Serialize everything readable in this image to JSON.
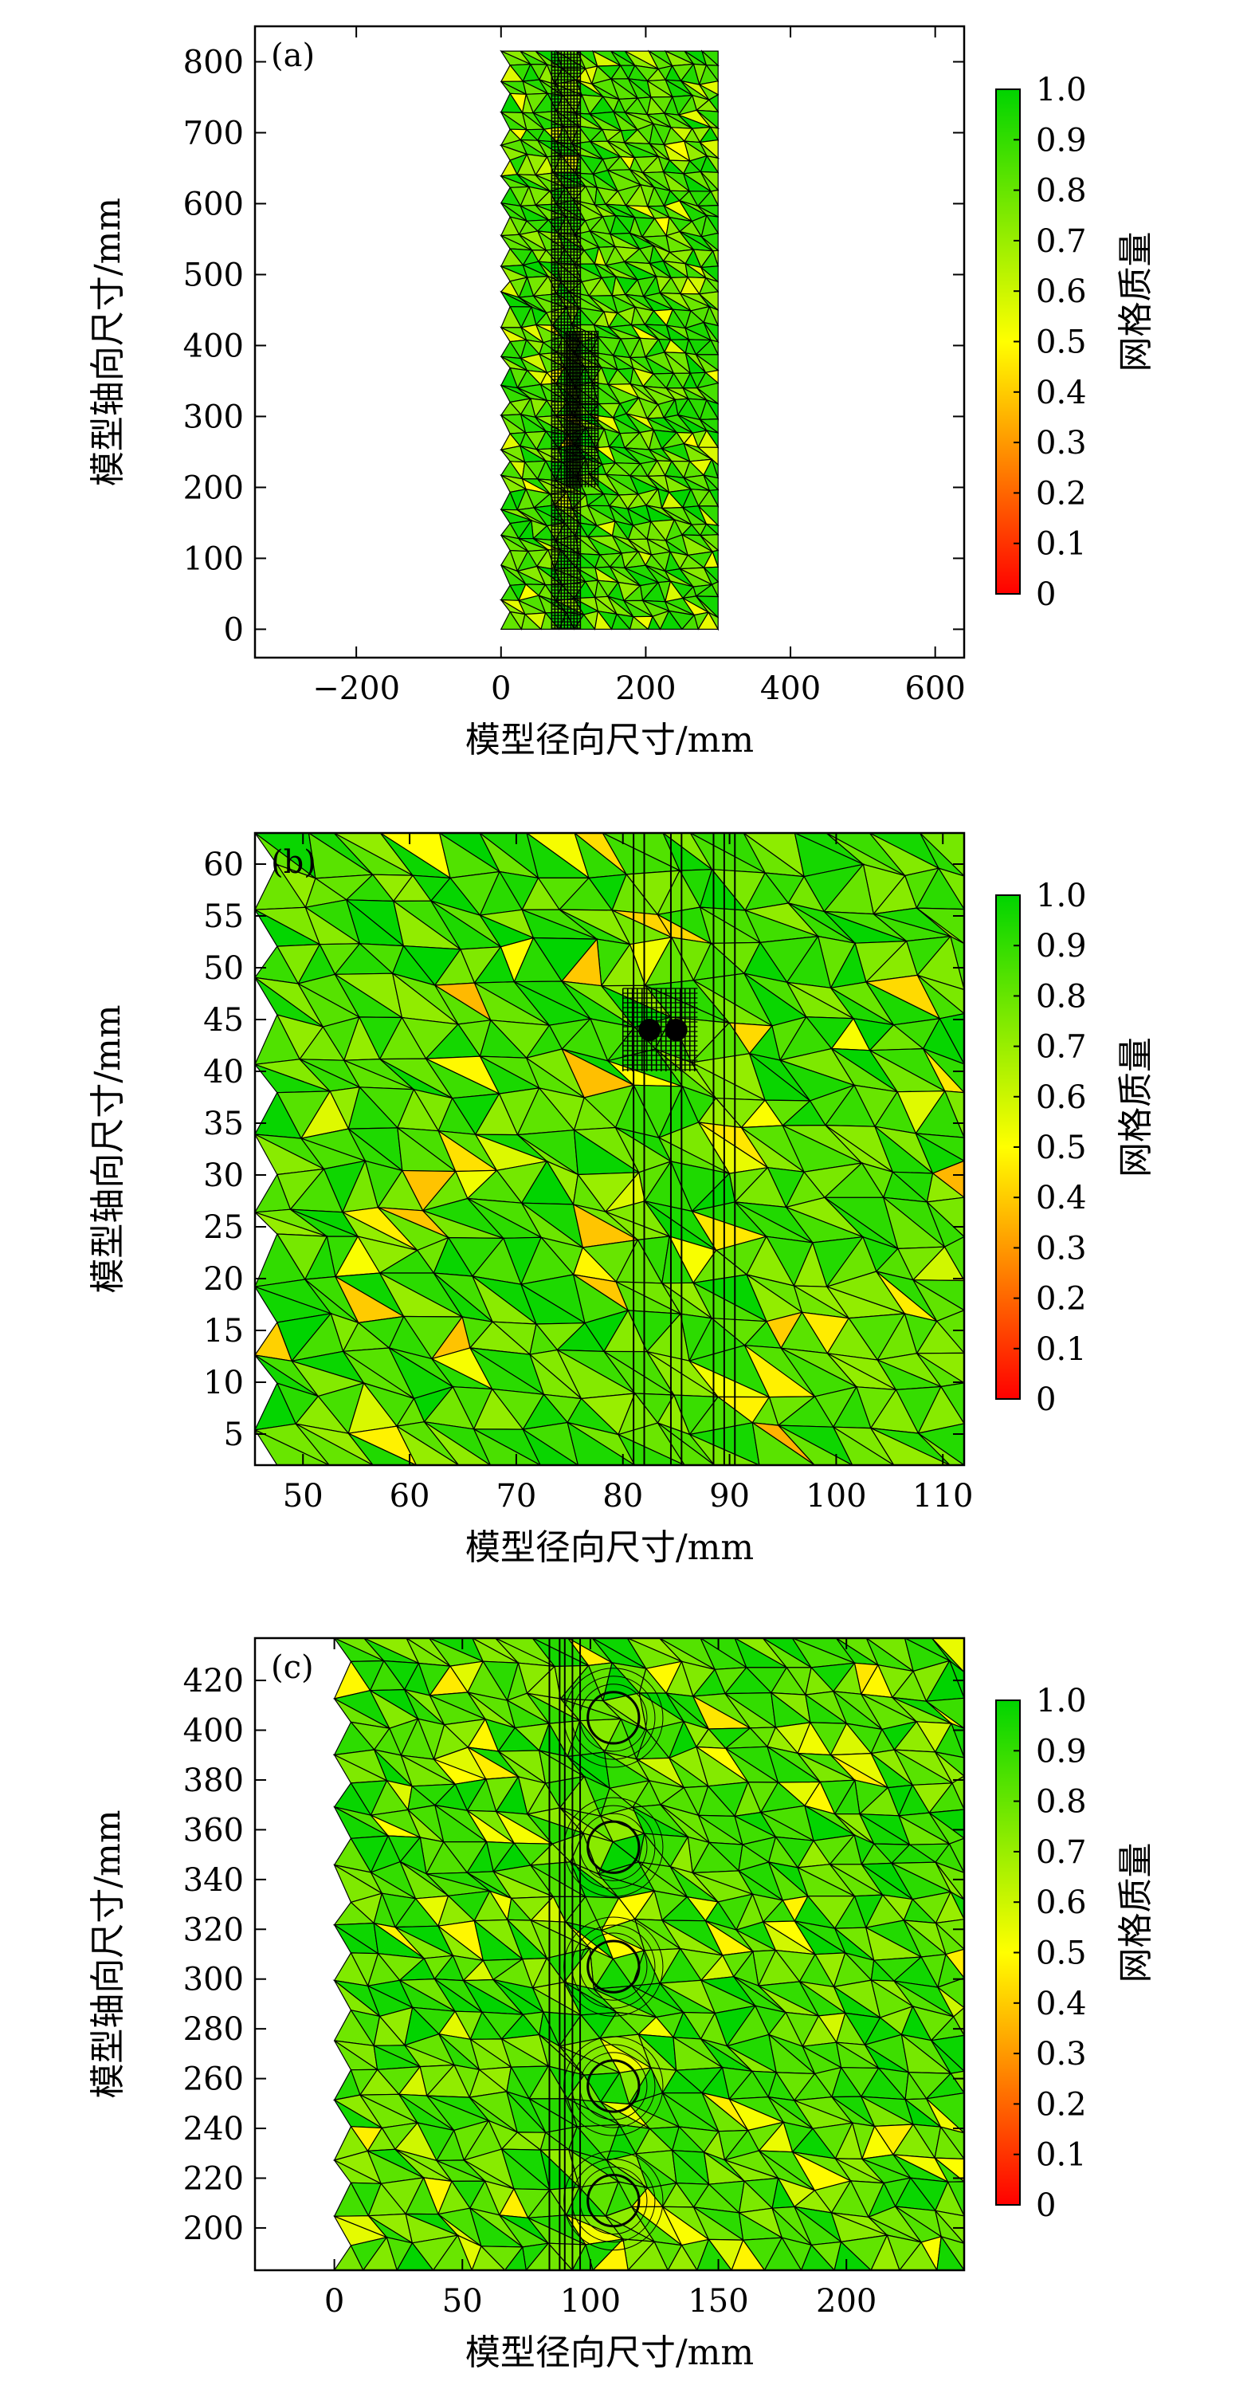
{
  "colorbar": {
    "label": "网格质量",
    "ticks": [
      0,
      0.1,
      0.2,
      0.3,
      0.4,
      0.5,
      0.6,
      0.7,
      0.8,
      0.9,
      1.0
    ],
    "tick_labels": [
      "0",
      "0.1",
      "0.2",
      "0.3",
      "0.4",
      "0.5",
      "0.6",
      "0.7",
      "0.8",
      "0.9",
      "1.0"
    ],
    "colors": [
      "#ff0000",
      "#ffff00",
      "#00d400"
    ]
  },
  "colors": {
    "mesh_line": "#000000",
    "mesh_fill_main": "#5ed41a",
    "mesh_fill_alt": "#8ee014",
    "mesh_fill_low": "#e6e63c",
    "axes": "#000000"
  },
  "chart_data": [
    {
      "type": "heatmap",
      "panel_label": "(a)",
      "xlabel": "模型径向尺寸/mm",
      "ylabel": "模型轴向尺寸/mm",
      "xlim": [
        -340,
        640
      ],
      "ylim": [
        -40,
        850
      ],
      "xticks": [
        -200,
        0,
        200,
        400,
        600
      ],
      "xtick_labels": [
        "−200",
        "0",
        "200",
        "400",
        "600"
      ],
      "yticks": [
        0,
        100,
        200,
        300,
        400,
        500,
        600,
        700,
        800
      ],
      "ytick_labels": [
        "0",
        "100",
        "200",
        "300",
        "400",
        "500",
        "600",
        "700",
        "800"
      ],
      "mesh_domain": {
        "x": [
          0,
          300
        ],
        "y": [
          0,
          815
        ]
      },
      "dense_regions": [
        {
          "x": [
            70,
            110
          ],
          "y": [
            0,
            815
          ]
        },
        {
          "x": [
            90,
            135
          ],
          "y": [
            200,
            420
          ]
        }
      ],
      "value_range": [
        0.5,
        1.0
      ]
    },
    {
      "type": "heatmap",
      "panel_label": "(b)",
      "xlabel": "模型径向尺寸/mm",
      "ylabel": "模型轴向尺寸/mm",
      "xlim": [
        45.5,
        112
      ],
      "ylim": [
        2,
        63
      ],
      "xticks": [
        50,
        60,
        70,
        80,
        90,
        100,
        110
      ],
      "xtick_labels": [
        "50",
        "60",
        "70",
        "80",
        "90",
        "100",
        "110"
      ],
      "yticks": [
        5,
        10,
        15,
        20,
        25,
        30,
        35,
        40,
        45,
        50,
        55,
        60
      ],
      "ytick_labels": [
        "5",
        "10",
        "15",
        "20",
        "25",
        "30",
        "35",
        "40",
        "45",
        "50",
        "55",
        "60"
      ],
      "mesh_domain": {
        "x": [
          45.5,
          112
        ],
        "y": [
          2,
          63
        ]
      },
      "dense_regions": [
        {
          "x": [
            80,
            87
          ],
          "y": [
            40,
            48
          ]
        }
      ],
      "vertical_strips": [
        81,
        82,
        84.5,
        85.5,
        88.5,
        89.5,
        90.5
      ],
      "value_range": [
        0.35,
        1.0
      ]
    },
    {
      "type": "heatmap",
      "panel_label": "(c)",
      "xlabel": "模型径向尺寸/mm",
      "ylabel": "模型轴向尺寸/mm",
      "xlim": [
        -31,
        246
      ],
      "ylim": [
        183,
        437
      ],
      "xticks": [
        0,
        50,
        100,
        150,
        200
      ],
      "xtick_labels": [
        "0",
        "50",
        "100",
        "150",
        "200"
      ],
      "yticks": [
        200,
        220,
        240,
        260,
        280,
        300,
        320,
        340,
        360,
        380,
        400,
        420
      ],
      "ytick_labels": [
        "200",
        "220",
        "240",
        "260",
        "280",
        "300",
        "320",
        "340",
        "360",
        "380",
        "400",
        "420"
      ],
      "mesh_domain": {
        "x": [
          0,
          246
        ],
        "y": [
          183,
          437
        ]
      },
      "circles": [
        {
          "cx": 109,
          "cy": 211,
          "r": 10
        },
        {
          "cx": 109,
          "cy": 257,
          "r": 10
        },
        {
          "cx": 109,
          "cy": 305,
          "r": 10
        },
        {
          "cx": 109,
          "cy": 353,
          "r": 10
        },
        {
          "cx": 109,
          "cy": 405,
          "r": 10
        }
      ],
      "vertical_strips": [
        84,
        88,
        90,
        93,
        96
      ],
      "value_range": [
        0.45,
        1.0
      ]
    }
  ]
}
